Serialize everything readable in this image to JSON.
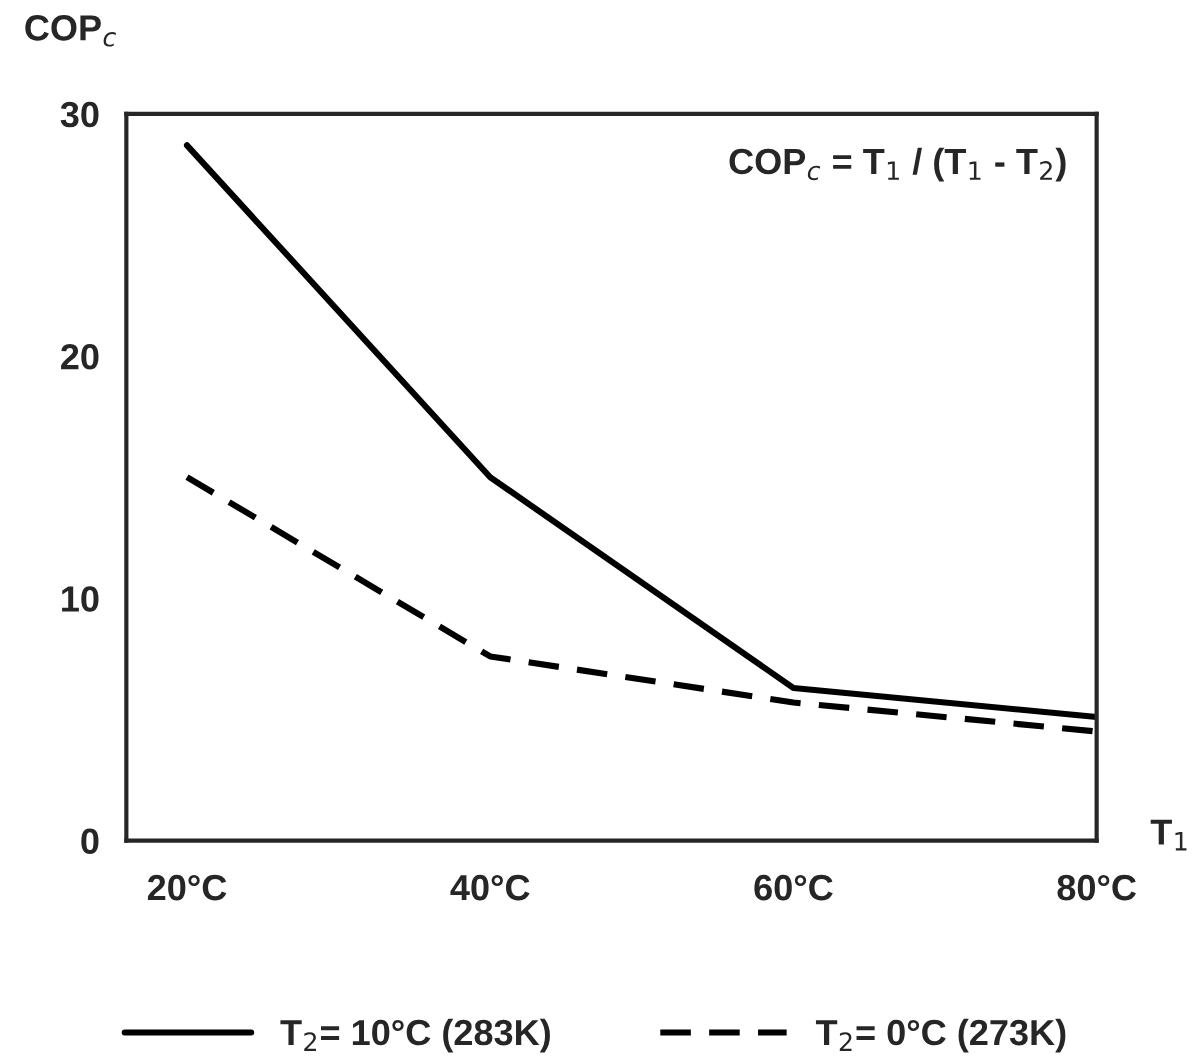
{
  "chart_data": {
    "type": "line",
    "ylabel": "COP$_{c}$",
    "xlabel": "T$_{1}$",
    "x": [
      20,
      40,
      60,
      80
    ],
    "series": [
      {
        "name": "T$_{2}$= 10°C (283K)",
        "color": "#000000",
        "line_style": "solid",
        "values": [
          28.7,
          15.0,
          6.3,
          5.1
        ]
      },
      {
        "name": "T$_{2}$= 0°C (273K)",
        "color": "#000000",
        "line_style": "dashed",
        "values": [
          15.0,
          7.6,
          5.7,
          4.5
        ]
      }
    ],
    "xlim": [
      16,
      80
    ],
    "xticks": [
      {
        "value": 20,
        "label": "20°C"
      },
      {
        "value": 40,
        "label": "40°C"
      },
      {
        "value": 60,
        "label": "60°C"
      },
      {
        "value": 80,
        "label": "80°C"
      }
    ],
    "ylim": [
      0,
      30
    ],
    "yticks": [
      0,
      10,
      20,
      30
    ],
    "annotations": [
      "COP$_{c}$ = T$_{1}$ / (T$_{1}$ - T$_{2}$)"
    ],
    "grid": false,
    "legend": "bottom",
    "marker": "none"
  }
}
